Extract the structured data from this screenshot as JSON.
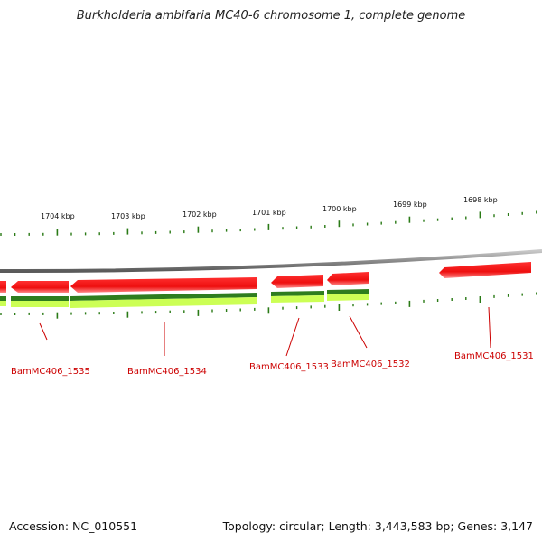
{
  "title": "Burkholderia ambifaria MC40-6 chromosome 1, complete genome",
  "accession_text": "Accession: NC_010551",
  "summary_text": "Topology: circular; Length: 3,443,583 bp; Genes: 3,147",
  "colors": {
    "backbone": "#8a8a8a",
    "gene": "#ee1111",
    "gene_highlight": "#ff8080",
    "cds_dark": "#2e7d1e",
    "cds_light": "#ccff55",
    "tick": "#2a7a16",
    "gene_label": "#cc0000",
    "kbp_label": "#111111"
  },
  "kbp_labels": [
    "1704 kbp",
    "1703 kbp",
    "1702 kbp",
    "1701 kbp",
    "1700 kbp",
    "1699 kbp",
    "1698 kbp"
  ],
  "gene_labels": [
    "BamMC406_1535",
    "BamMC406_1534",
    "BamMC406_1533",
    "BamMC406_1532",
    "BamMC406_1531"
  ]
}
